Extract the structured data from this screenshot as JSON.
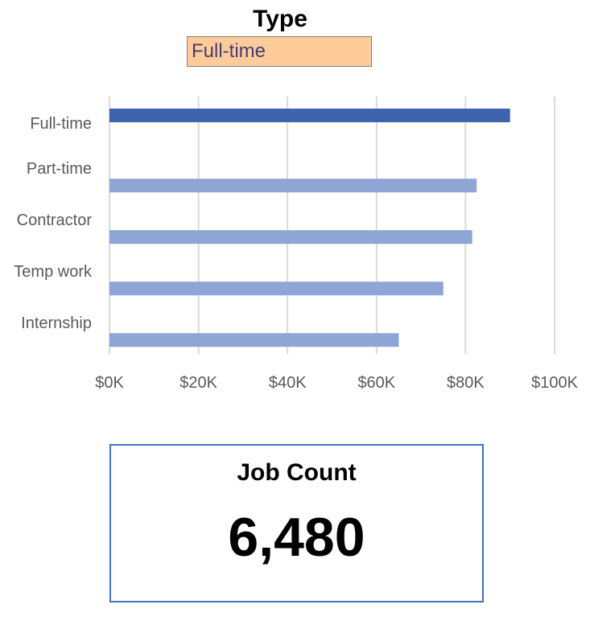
{
  "slicer": {
    "title": "Type",
    "selected": "Full-time"
  },
  "chart_data": {
    "type": "bar",
    "orientation": "horizontal",
    "categories": [
      "Full-time",
      "Part-time",
      "Contractor",
      "Temp work",
      "Internship"
    ],
    "values": [
      90000,
      82500,
      81500,
      75000,
      65000
    ],
    "highlighted": "Full-time",
    "xlim": [
      0,
      100000
    ],
    "xticks": [
      0,
      20000,
      40000,
      60000,
      80000,
      100000
    ],
    "xtick_labels": [
      "$0K",
      "$20K",
      "$40K",
      "$60K",
      "$80K",
      "$100K"
    ],
    "grid": "vertical",
    "colors": {
      "highlight": "#3f64ae",
      "default": "#8ea5d6",
      "grid": "#d9d9d9"
    }
  },
  "kpi": {
    "label": "Job Count",
    "value": "6,480"
  }
}
